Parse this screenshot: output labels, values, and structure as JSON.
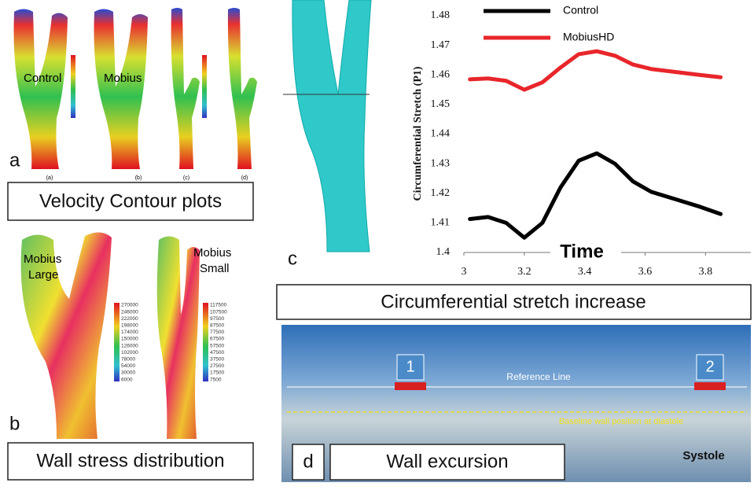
{
  "chart_data": {
    "type": "line",
    "xlabel": "Time",
    "ylabel": "Circumferential Stretch (P1)",
    "x": [
      3.02,
      3.08,
      3.14,
      3.2,
      3.26,
      3.32,
      3.38,
      3.44,
      3.5,
      3.56,
      3.62,
      3.7,
      3.78,
      3.85
    ],
    "series": [
      {
        "name": "Control",
        "color": "#000000",
        "values": [
          1.4113,
          1.412,
          1.41,
          1.405,
          1.41,
          1.422,
          1.431,
          1.4335,
          1.43,
          1.424,
          1.4205,
          1.418,
          1.4155,
          1.413
        ]
      },
      {
        "name": "MobiusHD",
        "color": "#e8262b",
        "values": [
          1.4585,
          1.4588,
          1.458,
          1.455,
          1.4575,
          1.4625,
          1.467,
          1.468,
          1.4665,
          1.4635,
          1.462,
          1.461,
          1.46,
          1.4592
        ]
      }
    ],
    "xlim": [
      3,
      3.95
    ],
    "ylim": [
      1.4,
      1.48
    ],
    "xticks": [
      3,
      3.2,
      3.4,
      3.6,
      3.8
    ],
    "yticks": [
      1.4,
      1.41,
      1.42,
      1.43,
      1.44,
      1.45,
      1.46,
      1.47,
      1.48
    ],
    "grid": false
  },
  "panels": {
    "a": {
      "label": "a",
      "caption": "Velocity Contour plots",
      "labels": [
        "Control",
        "Mobius"
      ],
      "sublabels": [
        "(a)",
        "(b)",
        "(c)",
        "(d)"
      ]
    },
    "b": {
      "label": "b",
      "caption": "Wall stress distribution",
      "large_label": [
        "Mobius",
        "Large"
      ],
      "small_label": [
        "Mobius",
        "Small"
      ],
      "colorbar_large": [
        "270000",
        "246000",
        "222000",
        "198000",
        "174000",
        "150000",
        "126000",
        "102000",
        "78000",
        "54000",
        "30000",
        "6000"
      ],
      "colorbar_small": [
        "117500",
        "107500",
        "97500",
        "87500",
        "77500",
        "67500",
        "57500",
        "47500",
        "37500",
        "27500",
        "17500",
        "7500"
      ]
    },
    "c": {
      "label": "c",
      "caption": "Circumferential stretch increase"
    },
    "d": {
      "label": "d",
      "caption": "Wall excursion",
      "markers": [
        "1",
        "2"
      ],
      "reference": "Reference Line",
      "baseline": "Baseline wall position at diastole",
      "phase": "Systole"
    }
  }
}
